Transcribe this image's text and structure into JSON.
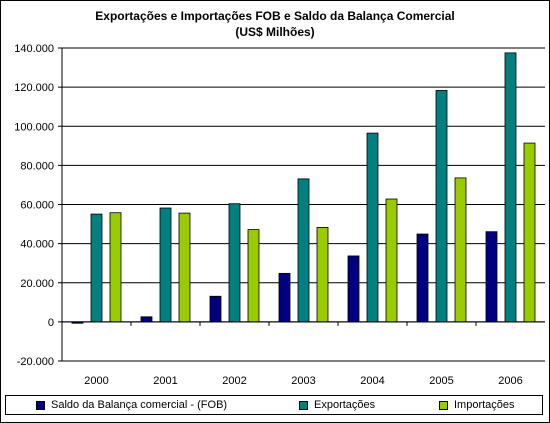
{
  "chart_data": {
    "type": "bar",
    "title": "Exportações e Importações FOB e Saldo da Balança Comercial",
    "subtitle": "(US$ Milhões)",
    "categories": [
      "2000",
      "2001",
      "2002",
      "2003",
      "2004",
      "2005",
      "2006"
    ],
    "series": [
      {
        "name": "Saldo da Balança comercial - (FOB)",
        "color": "#000080",
        "values": [
          -700,
          2600,
          13100,
          24800,
          33700,
          44900,
          46100
        ]
      },
      {
        "name": "Exportações",
        "color": "#008080",
        "values": [
          55100,
          58200,
          60400,
          73100,
          96500,
          118300,
          137500
        ]
      },
      {
        "name": "Importações",
        "color": "#99CC00",
        "values": [
          55800,
          55600,
          47200,
          48300,
          62800,
          73600,
          91400
        ]
      }
    ],
    "ylim": [
      -20000,
      140000
    ],
    "yticks": [
      "-20.000",
      "0",
      "20.000",
      "40.000",
      "60.000",
      "80.000",
      "100.000",
      "120.000",
      "140.000"
    ],
    "grid": true,
    "legend_position": "bottom"
  }
}
